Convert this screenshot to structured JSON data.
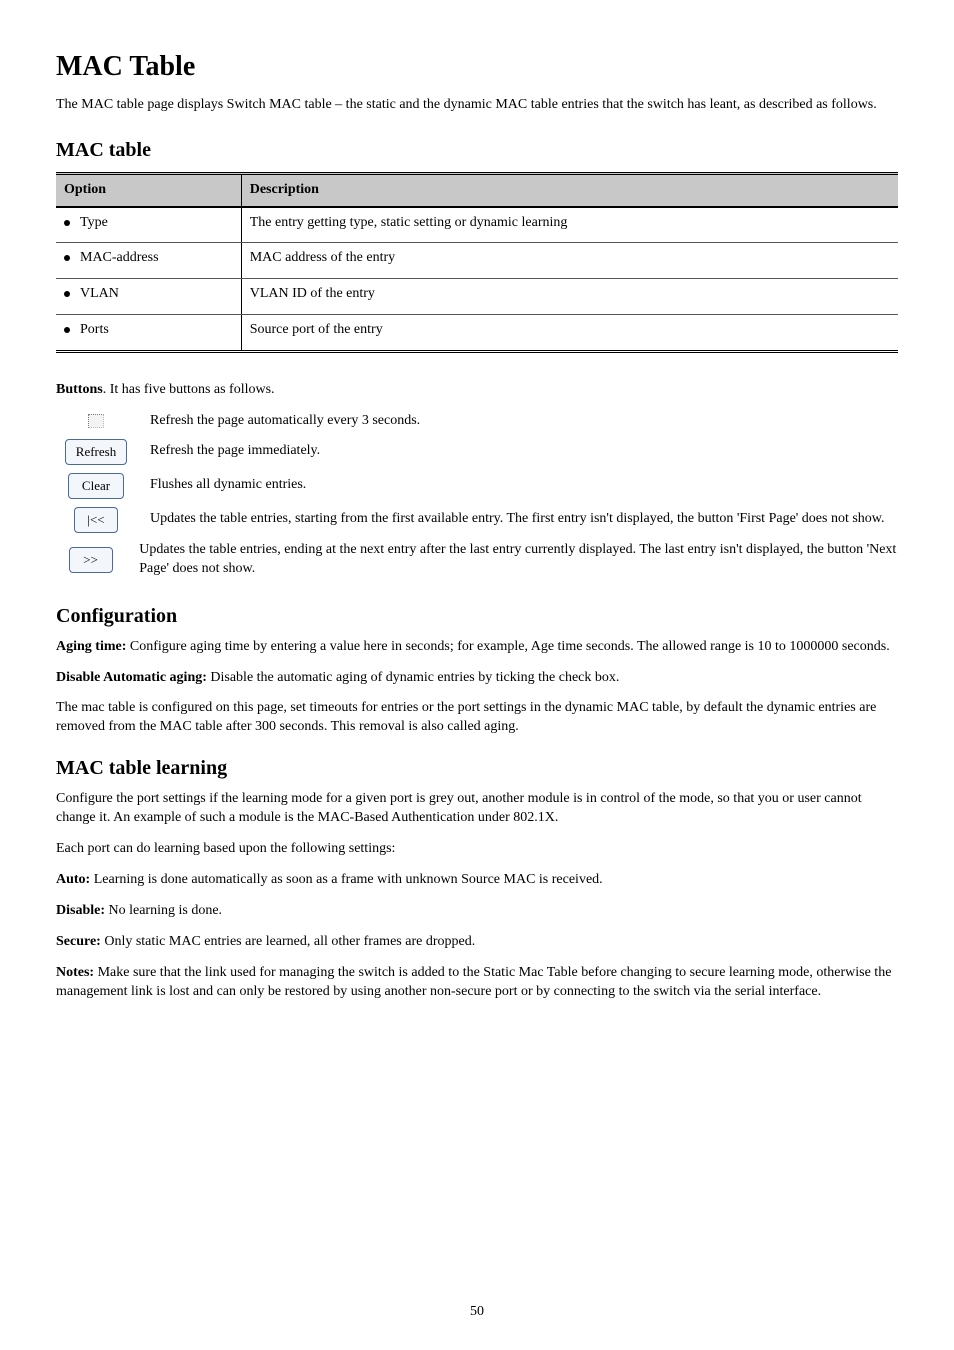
{
  "page_number": "50",
  "heading": "MAC Table",
  "intro": "The MAC table page displays Switch MAC table – the static and the dynamic MAC table entries that the switch has leant, as described as follows.",
  "subhead_mac_table": "MAC table",
  "table": {
    "columns": [
      "Option",
      "Description"
    ],
    "rows": [
      {
        "option": "Type",
        "desc": "The entry getting type, static setting or dynamic learning"
      },
      {
        "option": "MAC-address",
        "desc": "MAC address of the entry"
      },
      {
        "option": "VLAN",
        "desc": "VLAN ID of the entry"
      },
      {
        "option": "Ports",
        "desc": "Source port of the entry"
      }
    ]
  },
  "subhead_buttons": "Buttons",
  "buttons_desc_prefix": ". It has five buttons as follows.",
  "btn_rows": [
    {
      "name": "auto-refresh-checkbox",
      "label": "",
      "desc": "Refresh the page automatically every 3 seconds."
    },
    {
      "name": "refresh-button",
      "label": "Refresh",
      "desc": "Refresh the page immediately."
    },
    {
      "name": "clear-button",
      "label": "Clear",
      "desc": "Flushes all dynamic entries."
    },
    {
      "name": "prev-page-button",
      "label": "|<<",
      "desc": "Updates the table entries, starting from the first available entry. The first entry isn't displayed, the button 'First Page' does not show."
    },
    {
      "name": "next-page-button",
      "label": ">>",
      "desc": "Updates the table entries, ending at the next entry after the last entry currently displayed. The last entry isn't displayed, the button 'Next Page' does not show."
    }
  ],
  "subhead_config": "Configuration",
  "config": {
    "p1_prefix": "Aging time:",
    "p1_body": " Configure aging time by entering a value here in seconds; for example, Age time seconds. The allowed range is 10 to 1000000 seconds.",
    "p2_prefix": "Disable Automatic aging:",
    "p2_body": " Disable the automatic aging of dynamic entries by ticking the check box.",
    "p3": "The mac table is configured on this page, set timeouts for entries or the port settings in the dynamic MAC table, by default the dynamic entries are removed from the MAC table after 300 seconds. This removal is also called aging."
  },
  "subhead_learning": "MAC table learning",
  "learning": {
    "p1": "Configure the port settings if the learning mode for a given port is grey out, another module is in control of the mode, so that you or user cannot change it. An example of such a module is the MAC-Based Authentication under 802.1X.",
    "p2": "Each port can do learning based upon the following settings:",
    "modes": [
      {
        "label": "Auto:",
        "body": " Learning is done automatically as soon as a frame with unknown Source MAC is received."
      },
      {
        "label": "Disable:",
        "body": " No learning is done."
      },
      {
        "label": "Secure:",
        "body": " Only static MAC entries are learned, all other frames are dropped."
      }
    ]
  },
  "subhead_note": "Notes:",
  "note_body": " Make sure that the link used for managing the switch is added to the Static Mac Table before changing to secure learning mode, otherwise the management link is lost and can only be restored by using another non-secure port or by connecting to the switch via the serial interface."
}
